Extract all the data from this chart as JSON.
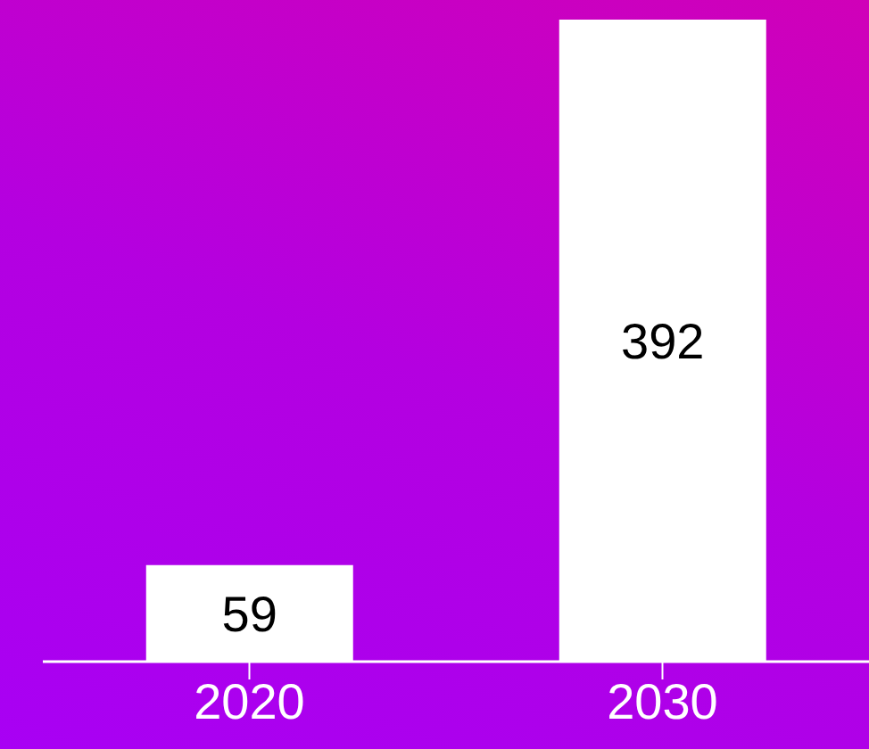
{
  "chart_data": {
    "type": "bar",
    "categories": [
      "2020",
      "2030"
    ],
    "values": [
      59,
      392
    ],
    "color": "#ffffff",
    "data_labels": true
  }
}
